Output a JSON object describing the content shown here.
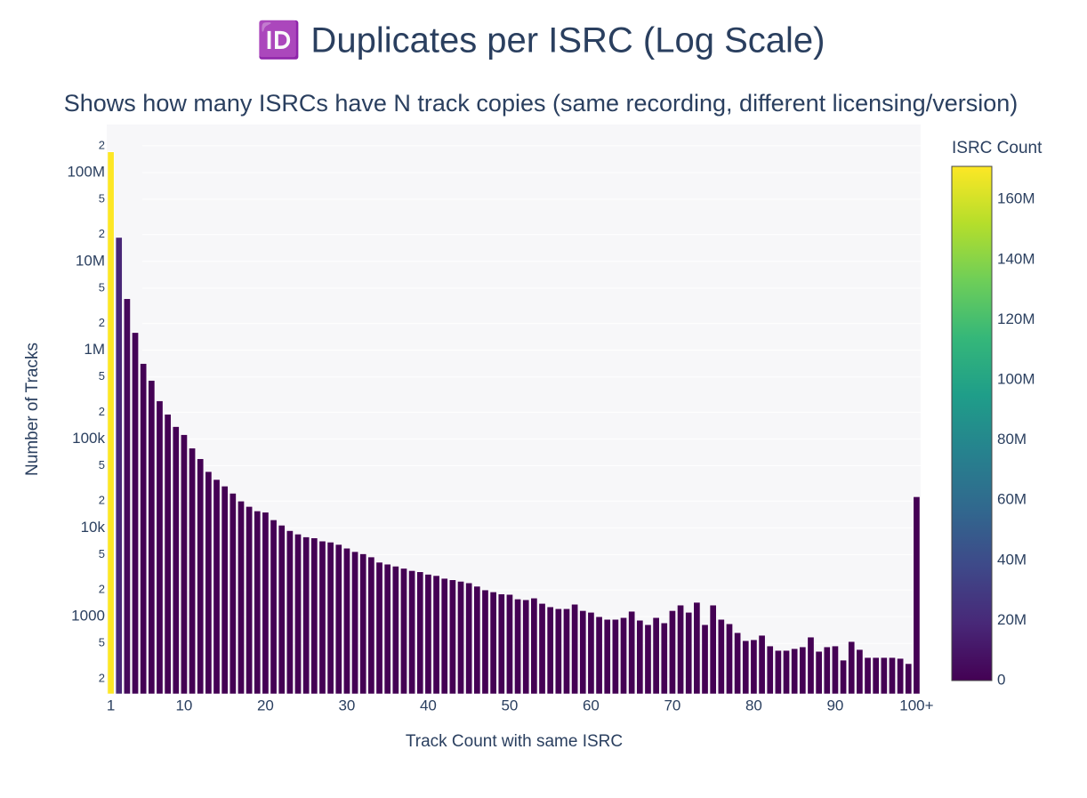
{
  "chart_data": {
    "type": "bar",
    "title": "🆔 Duplicates per ISRC (Log Scale)",
    "subtitle": "Shows how many ISRCs have N track copies (same recording, different licensing/version)",
    "x_label": "Track Count with same ISRC",
    "y_label": "Number of Tracks",
    "x": [
      1,
      2,
      3,
      4,
      5,
      6,
      7,
      8,
      9,
      10,
      11,
      12,
      13,
      14,
      15,
      16,
      17,
      18,
      19,
      20,
      21,
      22,
      23,
      24,
      25,
      26,
      27,
      28,
      29,
      30,
      31,
      32,
      33,
      34,
      35,
      36,
      37,
      38,
      39,
      40,
      41,
      42,
      43,
      44,
      45,
      46,
      47,
      48,
      49,
      50,
      51,
      52,
      53,
      54,
      55,
      56,
      57,
      58,
      59,
      60,
      61,
      62,
      63,
      64,
      65,
      66,
      67,
      68,
      69,
      70,
      71,
      72,
      73,
      74,
      75,
      76,
      77,
      78,
      79,
      80,
      81,
      82,
      83,
      84,
      85,
      86,
      87,
      88,
      89,
      90,
      91,
      92,
      93,
      94,
      95,
      96,
      97,
      98,
      99,
      100
    ],
    "values": [
      171000000,
      18600000,
      3800000,
      1580000,
      708000,
      457000,
      269000,
      190000,
      138000,
      112000,
      79000,
      60000,
      43000,
      35000,
      29500,
      24500,
      20000,
      17400,
      15500,
      15000,
      12300,
      10700,
      9300,
      8500,
      7900,
      7700,
      7100,
      6900,
      6500,
      5900,
      5400,
      5100,
      4700,
      4100,
      3900,
      3700,
      3500,
      3300,
      3200,
      3000,
      2900,
      2700,
      2600,
      2500,
      2400,
      2200,
      2000,
      1900,
      1800,
      1780,
      1580,
      1550,
      1620,
      1410,
      1290,
      1230,
      1230,
      1380,
      1170,
      1120,
      1000,
      933,
      933,
      977,
      1150,
      912,
      813,
      977,
      851,
      1170,
      1350,
      1120,
      1450,
      813,
      1350,
      933,
      832,
      661,
      537,
      550,
      617,
      468,
      417,
      417,
      437,
      457,
      589,
      407,
      457,
      468,
      324,
      525,
      427,
      347,
      347,
      347,
      347,
      339,
      296,
      22400
    ],
    "xlim": [
      0.5,
      100.5
    ],
    "xticks": [
      1,
      10,
      20,
      30,
      40,
      50,
      60,
      70,
      80,
      90,
      {
        "value": 100,
        "label": "100+"
      }
    ],
    "ylim": [
      135,
      347000000
    ],
    "log_y": true,
    "grid": true,
    "yticks": [
      {
        "value": 200,
        "label": "2"
      },
      {
        "value": 500,
        "label": "5"
      },
      1000,
      {
        "value": 2000,
        "label": "2"
      },
      {
        "value": 5000,
        "label": "5"
      },
      {
        "value": 10000,
        "label": "10k"
      },
      {
        "value": 20000,
        "label": "2"
      },
      {
        "value": 50000,
        "label": "5"
      },
      {
        "value": 100000,
        "label": "100k"
      },
      {
        "value": 200000,
        "label": "2"
      },
      {
        "value": 500000,
        "label": "5"
      },
      {
        "value": 1000000,
        "label": "1M"
      },
      {
        "value": 2000000,
        "label": "2"
      },
      {
        "value": 5000000,
        "label": "5"
      },
      {
        "value": 10000000,
        "label": "10M"
      },
      {
        "value": 20000000,
        "label": "2"
      },
      {
        "value": 50000000,
        "label": "5"
      },
      {
        "value": 100000000,
        "label": "100M"
      },
      {
        "value": 200000000,
        "label": "2"
      }
    ],
    "colorscale": [
      "#440154",
      "#482878",
      "#3e4989",
      "#31688e",
      "#26828e",
      "#1f9e89",
      "#35b779",
      "#6ece58",
      "#b5de2b",
      "#fde725"
    ],
    "colorbar": {
      "title": "ISRC Count",
      "lim": [
        0,
        171000000
      ],
      "ticks": [
        0,
        {
          "value": 20000000,
          "label": "20M"
        },
        {
          "value": 40000000,
          "label": "40M"
        },
        {
          "value": 60000000,
          "label": "60M"
        },
        {
          "value": 80000000,
          "label": "80M"
        },
        {
          "value": 100000000,
          "label": "100M"
        },
        {
          "value": 120000000,
          "label": "120M"
        },
        {
          "value": 140000000,
          "label": "140M"
        },
        {
          "value": 160000000,
          "label": "160M"
        }
      ]
    }
  }
}
